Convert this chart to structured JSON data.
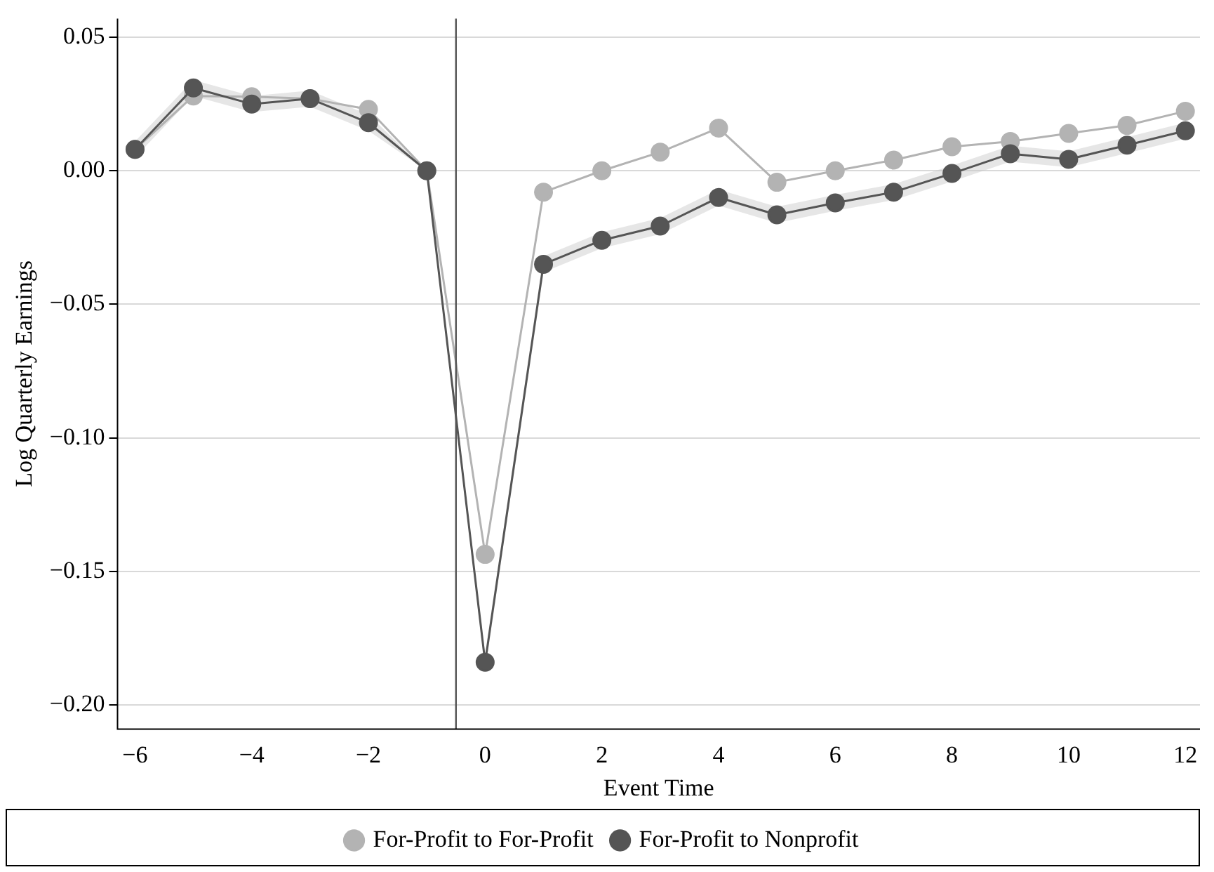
{
  "chart_data": {
    "type": "line",
    "xlabel": "Event Time",
    "ylabel": "Log Quarterly Earnings",
    "x": [
      -6,
      -5,
      -4,
      -3,
      -2,
      -1,
      0,
      1,
      2,
      3,
      4,
      5,
      6,
      7,
      8,
      9,
      10,
      11,
      12
    ],
    "series": [
      {
        "name": "For-Profit to For-Profit",
        "color": "#b3b3b3",
        "values": [
          0.008,
          0.028,
          0.0277,
          0.027,
          0.023,
          0,
          -0.1436,
          -0.008,
          0,
          0.007,
          0.016,
          -0.0043,
          0,
          0.004,
          0.009,
          0.011,
          0.014,
          0.017,
          0.0223
        ]
      },
      {
        "name": "For-Profit to Nonprofit",
        "color": "#555555",
        "values": [
          0.008,
          0.031,
          0.025,
          0.027,
          0.018,
          0,
          -0.184,
          -0.035,
          -0.026,
          -0.0207,
          -0.01,
          -0.0165,
          -0.012,
          -0.008,
          -0.001,
          0.0064,
          0.0043,
          0.0096,
          0.015
        ],
        "lower": [
          0.005,
          0.028,
          0.022,
          0.024,
          0.015,
          0,
          -0.187,
          -0.038,
          -0.029,
          -0.0237,
          -0.013,
          -0.0195,
          -0.015,
          -0.011,
          -0.004,
          0.0034,
          0.0013,
          0.0066,
          0.012
        ],
        "upper": [
          0.011,
          0.034,
          0.028,
          0.03,
          0.021,
          0,
          -0.181,
          -0.032,
          -0.023,
          -0.0177,
          -0.007,
          -0.0135,
          -0.009,
          -0.005,
          0.002,
          0.0094,
          0.0073,
          0.0126,
          0.018
        ]
      }
    ],
    "xlim": [
      -6.3,
      12.25
    ],
    "xticks": [
      {
        "value": -6,
        "label": "−6"
      },
      {
        "value": -4,
        "label": "−4"
      },
      {
        "value": -2,
        "label": "−2"
      },
      0,
      2,
      4,
      6,
      8,
      10,
      12
    ],
    "ylim": [
      -0.209,
      0.057
    ],
    "yticks": [
      {
        "value": -0.2,
        "label": "−0.20"
      },
      {
        "value": -0.15,
        "label": "−0.15"
      },
      {
        "value": -0.1,
        "label": "−0.10"
      },
      {
        "value": -0.05,
        "label": "−0.05"
      },
      {
        "value": 0,
        "label": "0.00"
      },
      {
        "value": 0.05,
        "label": "0.05"
      }
    ],
    "ref_lines": [
      {
        "axis": "x",
        "value": -0.5,
        "color": "#555555"
      }
    ],
    "grid": "y",
    "legend": "bottom",
    "marker": "circle",
    "line_style": "solid"
  }
}
